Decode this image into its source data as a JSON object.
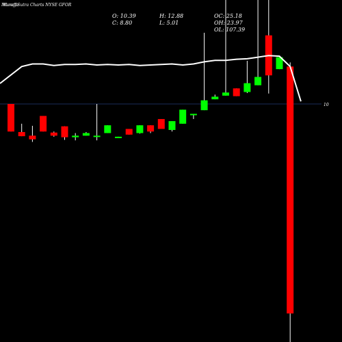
{
  "header": {
    "title": "MunafaSutra Charts NYSE GFOR",
    "title_overlay": "Munafa"
  },
  "stats": {
    "open": "O: 10.39",
    "high": "H: 12.88",
    "close": "C: 8.80",
    "low": "L: 5.01",
    "oc": "OC: 25.18",
    "oh": "OH: 23.97",
    "ol": "OL: 107.39"
  },
  "price_label": "10",
  "colors": {
    "background": "#000000",
    "up": "#00ff00",
    "down": "#ff0000",
    "wick": "#ffffff",
    "volume_line": "#ffffff",
    "reference_line": "#1a2b5a"
  },
  "chart_data": {
    "type": "candlestick",
    "reference_level": 10,
    "ylim": [
      0,
      50
    ],
    "candles": [
      {
        "dir": "down",
        "high": 10.0,
        "open": 10.0,
        "close": 7.35,
        "low": 7.35
      },
      {
        "dir": "down",
        "high": 8.1,
        "open": 7.3,
        "close": 6.9,
        "low": 6.9
      },
      {
        "dir": "down",
        "high": 7.9,
        "open": 6.95,
        "close": 6.6,
        "low": 6.35
      },
      {
        "dir": "down",
        "high": 8.85,
        "open": 8.85,
        "close": 7.35,
        "low": 7.35
      },
      {
        "dir": "down",
        "high": 7.35,
        "open": 7.25,
        "close": 6.95,
        "low": 6.85
      },
      {
        "dir": "down",
        "high": 7.85,
        "open": 7.85,
        "close": 6.8,
        "low": 6.55
      },
      {
        "dir": "up",
        "high": 7.2,
        "open": 6.8,
        "close": 6.95,
        "low": 6.5
      },
      {
        "dir": "up",
        "high": 7.3,
        "open": 6.95,
        "close": 7.2,
        "low": 6.95
      },
      {
        "dir": "up",
        "high": 10.0,
        "open": 6.9,
        "close": 6.95,
        "low": 6.5
      },
      {
        "dir": "up",
        "high": 7.95,
        "open": 7.2,
        "close": 7.95,
        "low": 7.2
      },
      {
        "dir": "up",
        "high": 6.85,
        "open": 6.8,
        "close": 6.85,
        "low": 6.8
      },
      {
        "dir": "down",
        "high": 7.6,
        "open": 7.6,
        "close": 7.05,
        "low": 7.05
      },
      {
        "dir": "up",
        "high": 7.95,
        "open": 7.2,
        "close": 7.95,
        "low": 7.15
      },
      {
        "dir": "down",
        "high": 7.95,
        "open": 7.95,
        "close": 7.35,
        "low": 7.2
      },
      {
        "dir": "down",
        "high": 8.55,
        "open": 8.55,
        "close": 7.6,
        "low": 7.6
      },
      {
        "dir": "up",
        "high": 8.35,
        "open": 7.5,
        "close": 8.35,
        "low": 7.35
      },
      {
        "dir": "up",
        "high": 9.45,
        "open": 8.1,
        "close": 9.45,
        "low": 8.1
      },
      {
        "dir": "up",
        "high": 9.05,
        "open": 8.95,
        "close": 9.05,
        "low": 8.55
      },
      {
        "dir": "up",
        "high": 16.85,
        "open": 9.4,
        "close": 10.35,
        "low": 9.4
      },
      {
        "dir": "up",
        "high": 10.9,
        "open": 10.45,
        "close": 10.7,
        "low": 10.45
      },
      {
        "dir": "up",
        "high": 25.85,
        "open": 10.8,
        "close": 11.1,
        "low": 10.8
      },
      {
        "dir": "down",
        "high": 11.5,
        "open": 11.5,
        "close": 10.75,
        "low": 10.75
      },
      {
        "dir": "up",
        "high": 14.15,
        "open": 11.15,
        "close": 12.0,
        "low": 11.05
      },
      {
        "dir": "up",
        "high": 22.7,
        "open": 11.8,
        "close": 12.6,
        "low": 11.8
      },
      {
        "dir": "down",
        "high": 30.0,
        "open": 16.6,
        "close": 12.75,
        "low": 11.0
      },
      {
        "dir": "up",
        "high": 14.5,
        "open": 13.35,
        "close": 14.5,
        "low": 13.35
      },
      {
        "dir": "down",
        "high": 14.0,
        "open": 13.6,
        "close": -10.15,
        "low": -30.0
      }
    ],
    "volume_line": [
      7.9,
      13.6,
      13.85,
      13.85,
      13.7,
      13.8,
      13.8,
      13.85,
      13.75,
      13.8,
      13.75,
      13.8,
      13.7,
      13.75,
      13.8,
      13.85,
      13.75,
      13.85,
      14.05,
      14.2,
      14.2,
      14.3,
      14.35,
      14.5,
      14.65,
      14.6,
      13.6,
      10.25
    ]
  }
}
